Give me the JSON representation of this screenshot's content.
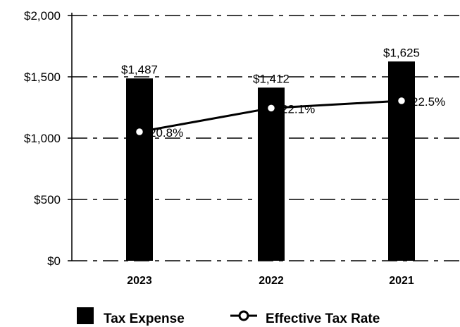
{
  "chart_data": {
    "type": "bar",
    "title": "",
    "xlabel": "",
    "ylabel": "",
    "categories": [
      "2023",
      "2022",
      "2021"
    ],
    "ylim": [
      0,
      2000
    ],
    "yticks": [
      0,
      500,
      1000,
      1500,
      2000
    ],
    "ytick_labels": [
      "$0",
      "$500",
      "$1,000",
      "$1,500",
      "$2,000"
    ],
    "grid": "horizontal, dashed",
    "legend_position": "bottom",
    "series": [
      {
        "name": "Tax Expense",
        "kind": "bar",
        "color": "#000000",
        "values": [
          1487,
          1412,
          1625
        ],
        "labels": [
          "$1,487",
          "$1,412",
          "$1,625"
        ]
      },
      {
        "name": "Effective Tax Rate",
        "kind": "line",
        "color": "#000000",
        "marker": "hollow-circle",
        "values": [
          20.8,
          22.1,
          22.5
        ],
        "labels": [
          "20.8%",
          "22.1%",
          "22.5%"
        ]
      }
    ]
  }
}
